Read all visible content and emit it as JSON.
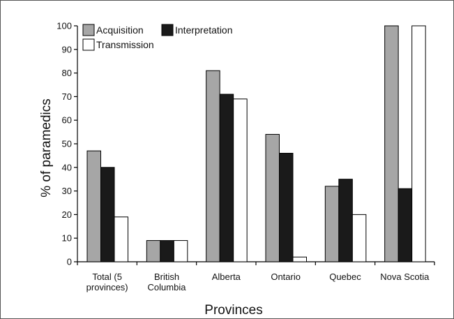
{
  "chart_data": {
    "type": "bar",
    "title": "",
    "xlabel": "Provinces",
    "ylabel": "% of paramedics",
    "ylim": [
      0,
      100
    ],
    "yticks": [
      0,
      10,
      20,
      30,
      40,
      50,
      60,
      70,
      80,
      90,
      100
    ],
    "grid": false,
    "legend_position": "top-left",
    "categories": [
      [
        "Total (5",
        "provinces)"
      ],
      [
        "British",
        "Columbia"
      ],
      [
        "Alberta"
      ],
      [
        "Ontario"
      ],
      [
        "Quebec"
      ],
      [
        "Nova Scotia"
      ]
    ],
    "series": [
      {
        "name": "Acquisition",
        "color": "#a6a6a6",
        "values": [
          47,
          9,
          81,
          54,
          32,
          100
        ]
      },
      {
        "name": "Interpretation",
        "color": "#1a1a1a",
        "values": [
          40,
          9,
          71,
          46,
          35,
          31
        ]
      },
      {
        "name": "Transmission",
        "color": "#ffffff",
        "values": [
          19,
          9,
          69,
          2,
          20,
          100
        ]
      }
    ]
  }
}
